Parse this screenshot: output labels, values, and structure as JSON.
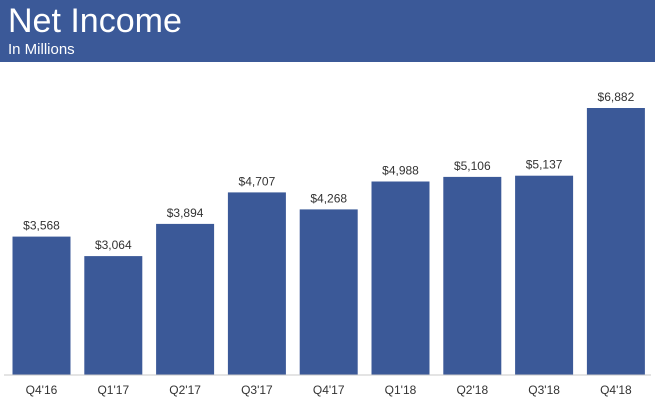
{
  "header": {
    "title": "Net Income",
    "subtitle": "In Millions"
  },
  "colors": {
    "bar": "#3b5998",
    "header_bg": "#3b5998",
    "header_text": "#ffffff"
  },
  "chart_data": {
    "type": "bar",
    "title": "Net Income",
    "subtitle": "In Millions",
    "categories": [
      "Q4'16",
      "Q1'17",
      "Q2'17",
      "Q3'17",
      "Q4'17",
      "Q1'18",
      "Q2'18",
      "Q3'18",
      "Q4'18"
    ],
    "values": [
      3568,
      3064,
      3894,
      4707,
      4268,
      4988,
      5106,
      5137,
      6882
    ],
    "value_labels": [
      "$3,568",
      "$3,064",
      "$3,894",
      "$4,707",
      "$4,268",
      "$4,988",
      "$5,106",
      "$5,137",
      "$6,882"
    ],
    "xlabel": "",
    "ylabel": "",
    "ylim": [
      0,
      6882
    ],
    "grid": false,
    "legend": "none"
  }
}
